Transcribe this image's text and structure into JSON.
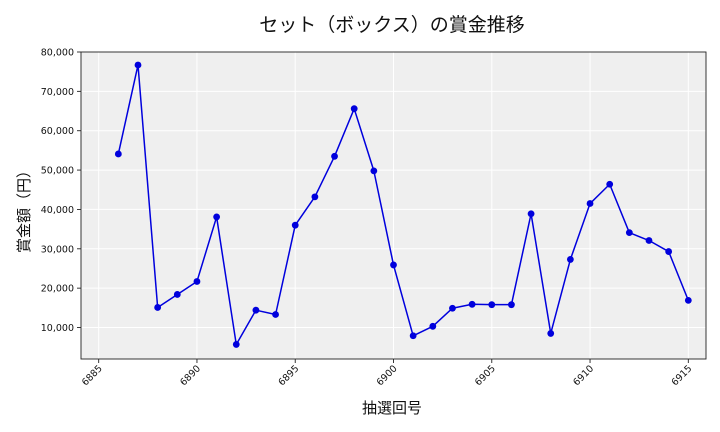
{
  "chart_data": {
    "type": "line",
    "title": "セット（ボックス）の賞金推移",
    "xlabel": "抽選回号",
    "ylabel": "賞金額（円）",
    "xlim": [
      6884.1,
      6915.9
    ],
    "ylim": [
      2000,
      80000
    ],
    "grid": true,
    "x_ticks": [
      6885,
      6890,
      6895,
      6900,
      6905,
      6910,
      6915
    ],
    "y_ticks": [
      10000,
      20000,
      30000,
      40000,
      50000,
      60000,
      70000,
      80000
    ],
    "y_tick_labels": [
      "10,000",
      "20,000",
      "30,000",
      "40,000",
      "50,000",
      "60,000",
      "70,000",
      "80,000"
    ],
    "series_color": "#0000dd",
    "x": [
      6886,
      6887,
      6888,
      6889,
      6890,
      6891,
      6892,
      6893,
      6894,
      6895,
      6896,
      6897,
      6898,
      6899,
      6900,
      6901,
      6902,
      6903,
      6904,
      6905,
      6906,
      6907,
      6908,
      6909,
      6910,
      6911,
      6912,
      6913,
      6914,
      6915
    ],
    "values": [
      54100,
      76700,
      15100,
      18400,
      21700,
      38100,
      5700,
      14400,
      13300,
      36000,
      43200,
      53500,
      65600,
      49800,
      25900,
      7900,
      10300,
      14900,
      15900,
      15800,
      15800,
      38900,
      8500,
      27300,
      41500,
      46400,
      34100,
      32100,
      29300,
      16900
    ]
  }
}
